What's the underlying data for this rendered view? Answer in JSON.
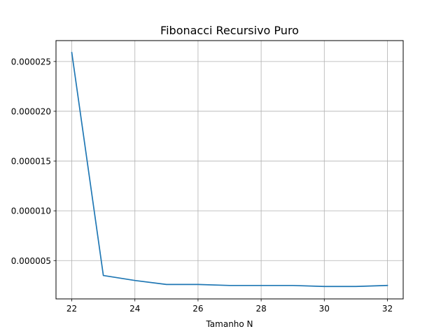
{
  "chart_data": {
    "type": "line",
    "title": "Fibonacci Recursivo Puro",
    "xlabel": "Tamanho N",
    "ylabel": "",
    "x": [
      22,
      23,
      24,
      25,
      26,
      27,
      28,
      29,
      30,
      31,
      32
    ],
    "series": [
      {
        "values": [
          2.59e-05,
          3.5e-06,
          3e-06,
          2.6e-06,
          2.6e-06,
          2.5e-06,
          2.5e-06,
          2.5e-06,
          2.4e-06,
          2.4e-06,
          2.5e-06
        ],
        "color": "#1f77b4"
      }
    ],
    "xlim": [
      21.5,
      32.5
    ],
    "ylim": [
      1.15e-06,
      2.71e-05
    ],
    "xticks": [
      22,
      24,
      26,
      28,
      30,
      32
    ],
    "xtick_labels": [
      "22",
      "24",
      "26",
      "28",
      "30",
      "32"
    ],
    "yticks": [
      5e-06,
      1e-05,
      1.5e-05,
      2e-05,
      2.5e-05
    ],
    "ytick_labels": [
      "0.000005",
      "0.000010",
      "0.000015",
      "0.000020",
      "0.000025"
    ],
    "grid": true,
    "grid_color": "#b0b0b0"
  }
}
